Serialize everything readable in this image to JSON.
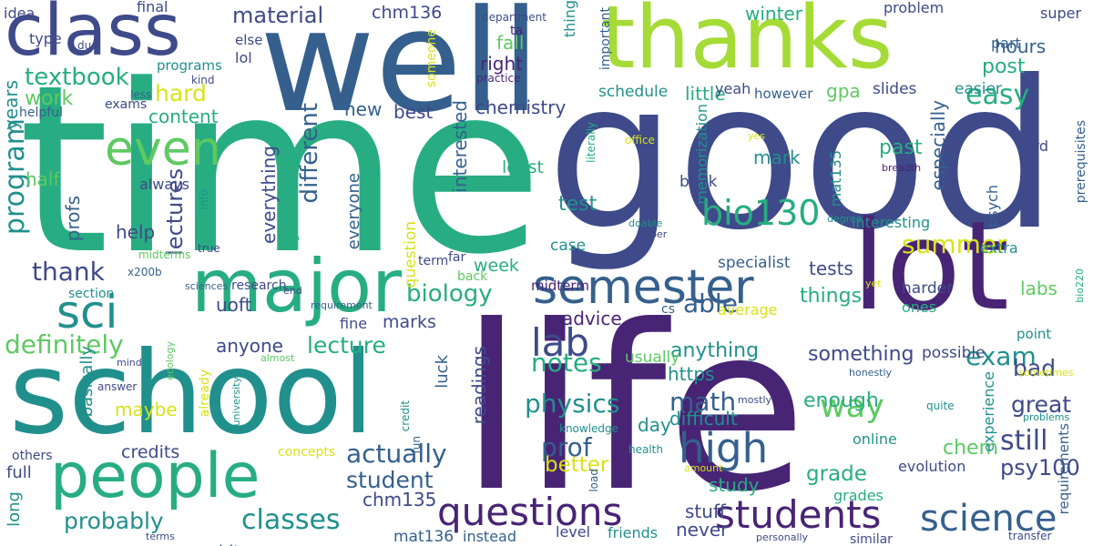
{
  "palette": {
    "dark_purple": "#482475",
    "indigo": "#3e4a89",
    "slate_blue": "#35608d",
    "teal": "#21908d",
    "sea_green": "#27ad81",
    "green": "#5ec962",
    "lime": "#a5db36",
    "yellow": "#d8e219",
    "purple": "#440154"
  },
  "words": [
    {
      "text": "time",
      "color": "#27ad81"
    },
    {
      "text": "good",
      "color": "#3e4a89"
    },
    {
      "text": "life",
      "color": "#482475"
    },
    {
      "text": "well",
      "color": "#35608d"
    },
    {
      "text": "thanks",
      "color": "#a5db36"
    },
    {
      "text": "school",
      "color": "#21908d"
    },
    {
      "text": "lot",
      "color": "#482475"
    },
    {
      "text": "class",
      "color": "#3e4a89"
    },
    {
      "text": "major",
      "color": "#27ad81"
    },
    {
      "text": "people",
      "color": "#27ad81"
    },
    {
      "text": "semester",
      "color": "#35608d"
    },
    {
      "text": "even",
      "color": "#5ec962"
    },
    {
      "text": "questions",
      "color": "#482475"
    },
    {
      "text": "students",
      "color": "#482475"
    },
    {
      "text": "sci",
      "color": "#21908d"
    },
    {
      "text": "high",
      "color": "#35608d"
    },
    {
      "text": "science",
      "color": "#35608d"
    },
    {
      "text": "bio130",
      "color": "#27ad81"
    },
    {
      "text": "program",
      "color": "#21908d"
    },
    {
      "text": "lab",
      "color": "#3e4a89"
    },
    {
      "text": "lectures",
      "color": "#3e4a89"
    },
    {
      "text": "classes",
      "color": "#21908d"
    },
    {
      "text": "easy",
      "color": "#27ad81"
    },
    {
      "text": "textbook",
      "color": "#27ad81"
    },
    {
      "text": "material",
      "color": "#3e4a89"
    },
    {
      "text": "hard",
      "color": "#d8e219"
    },
    {
      "text": "thank",
      "color": "#3e4a89"
    },
    {
      "text": "definitely",
      "color": "#5ec962"
    },
    {
      "text": "biology",
      "color": "#27ad81"
    },
    {
      "text": "lecture",
      "color": "#27ad81"
    },
    {
      "text": "physics",
      "color": "#21908d"
    },
    {
      "text": "notes",
      "color": "#27ad81"
    },
    {
      "text": "actually",
      "color": "#35608d"
    },
    {
      "text": "math",
      "color": "#35608d"
    },
    {
      "text": "student",
      "color": "#35608d"
    },
    {
      "text": "probably",
      "color": "#21908d"
    },
    {
      "text": "way",
      "color": "#5ec962"
    },
    {
      "text": "prof",
      "color": "#35608d"
    },
    {
      "text": "exam",
      "color": "#21908d"
    },
    {
      "text": "still",
      "color": "#3e4a89"
    },
    {
      "text": "summer",
      "color": "#d8e219"
    },
    {
      "text": "different",
      "color": "#35608d"
    },
    {
      "text": "years",
      "color": "#21908d"
    },
    {
      "text": "chem",
      "color": "#5ec962"
    },
    {
      "text": "great",
      "color": "#3e4a89"
    },
    {
      "text": "bad",
      "color": "#3e4a89"
    },
    {
      "text": "better",
      "color": "#d8e219"
    },
    {
      "text": "able",
      "color": "#35608d"
    },
    {
      "text": "psy100",
      "color": "#3e4a89"
    },
    {
      "text": "chm135",
      "color": "#3e4a89"
    },
    {
      "text": "grade",
      "color": "#27ad81"
    },
    {
      "text": "something",
      "color": "#3e4a89"
    },
    {
      "text": "past",
      "color": "#27ad81"
    },
    {
      "text": "especially",
      "color": "#35608d"
    },
    {
      "text": "difficult",
      "color": "#21908d"
    },
    {
      "text": "enough",
      "color": "#27ad81"
    },
    {
      "text": "readings",
      "color": "#3e4a89"
    },
    {
      "text": "interested",
      "color": "#35608d"
    },
    {
      "text": "anything",
      "color": "#21908d"
    },
    {
      "text": "https",
      "color": "#21908d"
    },
    {
      "text": "hours",
      "color": "#35608d"
    },
    {
      "text": "post",
      "color": "#27ad81"
    },
    {
      "text": "everything",
      "color": "#3e4a89"
    },
    {
      "text": "content",
      "color": "#27ad81"
    },
    {
      "text": "work",
      "color": "#5ec962"
    },
    {
      "text": "chm136",
      "color": "#3e4a89"
    },
    {
      "text": "fall",
      "color": "#5ec962"
    },
    {
      "text": "right",
      "color": "#482475"
    },
    {
      "text": "winter",
      "color": "#27ad81"
    },
    {
      "text": "best",
      "color": "#3e4a89"
    },
    {
      "text": "chemistry",
      "color": "#3e4a89"
    },
    {
      "text": "little",
      "color": "#27ad81"
    },
    {
      "text": "schedule",
      "color": "#21908d"
    },
    {
      "text": "gpa",
      "color": "#5ec962"
    },
    {
      "text": "easier",
      "color": "#21908d"
    },
    {
      "text": "slides",
      "color": "#3e4a89"
    },
    {
      "text": "mark",
      "color": "#21908d"
    },
    {
      "text": "mat135",
      "color": "#21908d"
    },
    {
      "text": "test",
      "color": "#21908d"
    },
    {
      "text": "tests",
      "color": "#3e4a89"
    },
    {
      "text": "things",
      "color": "#27ad81"
    },
    {
      "text": "labs",
      "color": "#5ec962"
    },
    {
      "text": "new",
      "color": "#35608d"
    },
    {
      "text": "help",
      "color": "#3e4a89"
    },
    {
      "text": "everyone",
      "color": "#35608d"
    },
    {
      "text": "uoft",
      "color": "#3e4a89"
    },
    {
      "text": "advice",
      "color": "#482475"
    },
    {
      "text": "marks",
      "color": "#3e4a89"
    },
    {
      "text": "anyone",
      "color": "#3e4a89"
    },
    {
      "text": "profs",
      "color": "#35608d"
    },
    {
      "text": "half",
      "color": "#5ec962"
    },
    {
      "text": "maybe",
      "color": "#d8e219"
    },
    {
      "text": "credits",
      "color": "#3e4a89"
    },
    {
      "text": "basically",
      "color": "#21908d"
    },
    {
      "text": "full",
      "color": "#3e4a89"
    },
    {
      "text": "long",
      "color": "#21908d"
    },
    {
      "text": "bit",
      "color": "#3e4a89"
    },
    {
      "text": "mat136",
      "color": "#35608d"
    },
    {
      "text": "instead",
      "color": "#35608d"
    },
    {
      "text": "friends",
      "color": "#21908d"
    },
    {
      "text": "level",
      "color": "#3e4a89"
    },
    {
      "text": "stuff",
      "color": "#3e4a89"
    },
    {
      "text": "never",
      "color": "#3e4a89"
    },
    {
      "text": "study",
      "color": "#27ad81"
    },
    {
      "text": "day",
      "color": "#21908d"
    },
    {
      "text": "luck",
      "color": "#35608d"
    },
    {
      "text": "week",
      "color": "#27ad81"
    },
    {
      "text": "midterm",
      "color": "#482475"
    },
    {
      "text": "question",
      "color": "#d8e219"
    },
    {
      "text": "book",
      "color": "#3e4a89"
    },
    {
      "text": "case",
      "color": "#21908d"
    },
    {
      "text": "least",
      "color": "#27ad81"
    },
    {
      "text": "specialist",
      "color": "#35608d"
    },
    {
      "text": "memorization",
      "color": "#21908d"
    },
    {
      "text": "harder",
      "color": "#3e4a89"
    },
    {
      "text": "possible",
      "color": "#3e4a89"
    },
    {
      "text": "usually",
      "color": "#5ec962"
    },
    {
      "text": "average",
      "color": "#d8e219"
    },
    {
      "text": "experience",
      "color": "#21908d"
    },
    {
      "text": "evolution",
      "color": "#3e4a89"
    },
    {
      "text": "grades",
      "color": "#27ad81"
    },
    {
      "text": "online",
      "color": "#21908d"
    },
    {
      "text": "requirements",
      "color": "#35608d"
    },
    {
      "text": "extra",
      "color": "#21908d"
    },
    {
      "text": "ones",
      "color": "#27ad81"
    },
    {
      "text": "interesting",
      "color": "#21908d"
    },
    {
      "text": "psych",
      "color": "#35608d"
    },
    {
      "text": "bird",
      "color": "#3e4a89"
    },
    {
      "text": "prerequisites",
      "color": "#35608d"
    },
    {
      "text": "super",
      "color": "#3e4a89"
    },
    {
      "text": "part",
      "color": "#35608d"
    },
    {
      "text": "problem",
      "color": "#3e4a89"
    },
    {
      "text": "yeah",
      "color": "#3e4a89"
    },
    {
      "text": "however",
      "color": "#35608d"
    },
    {
      "text": "idea",
      "color": "#3e4a89"
    },
    {
      "text": "final",
      "color": "#3e4a89"
    },
    {
      "text": "type",
      "color": "#3e4a89"
    },
    {
      "text": "else",
      "color": "#3e4a89"
    },
    {
      "text": "lol",
      "color": "#3e4a89"
    },
    {
      "text": "programs",
      "color": "#21908d"
    },
    {
      "text": "exams",
      "color": "#3e4a89"
    },
    {
      "text": "helpful",
      "color": "#35608d"
    },
    {
      "text": "less",
      "color": "#35608d"
    },
    {
      "text": "kind",
      "color": "#3e4a89"
    },
    {
      "text": "due",
      "color": "#3e4a89"
    },
    {
      "text": "department",
      "color": "#3e4a89"
    },
    {
      "text": "ta",
      "color": "#482475"
    },
    {
      "text": "thing",
      "color": "#21908d"
    },
    {
      "text": "important",
      "color": "#35608d"
    },
    {
      "text": "someone",
      "color": "#d8e219"
    },
    {
      "text": "practice",
      "color": "#482475"
    },
    {
      "text": "office",
      "color": "#d8e219"
    },
    {
      "text": "yes",
      "color": "#d8e219"
    },
    {
      "text": "literally",
      "color": "#27ad81"
    },
    {
      "text": "breadth",
      "color": "#482475"
    },
    {
      "text": "doable",
      "color": "#21908d"
    },
    {
      "text": "upper",
      "color": "#3e4a89"
    },
    {
      "text": "degree",
      "color": "#21908d"
    },
    {
      "text": "far",
      "color": "#3e4a89"
    },
    {
      "text": "back",
      "color": "#5ec962"
    },
    {
      "text": "term",
      "color": "#3e4a89"
    },
    {
      "text": "info",
      "color": "#21908d"
    },
    {
      "text": "general",
      "color": "#27ad81"
    },
    {
      "text": "always",
      "color": "#3e4a89"
    },
    {
      "text": "true",
      "color": "#3e4a89"
    },
    {
      "text": "midterms",
      "color": "#5ec962"
    },
    {
      "text": "x200b",
      "color": "#35608d"
    },
    {
      "text": "sciences",
      "color": "#35608d"
    },
    {
      "text": "research",
      "color": "#3e4a89"
    },
    {
      "text": "section",
      "color": "#21908d"
    },
    {
      "text": "end",
      "color": "#3e4a89"
    },
    {
      "text": "fine",
      "color": "#3e4a89"
    },
    {
      "text": "requirement",
      "color": "#35608d"
    },
    {
      "text": "almost",
      "color": "#5ec962"
    },
    {
      "text": "university",
      "color": "#21908d"
    },
    {
      "text": "ecology",
      "color": "#5ec962"
    },
    {
      "text": "mind",
      "color": "#3e4a89"
    },
    {
      "text": "answer",
      "color": "#3e4a89"
    },
    {
      "text": "already",
      "color": "#d8e219"
    },
    {
      "text": "concepts",
      "color": "#d8e219"
    },
    {
      "text": "others",
      "color": "#3e4a89"
    },
    {
      "text": "terms",
      "color": "#3e4a89"
    },
    {
      "text": "credit",
      "color": "#21908d"
    },
    {
      "text": "fun",
      "color": "#35608d"
    },
    {
      "text": "knowledge",
      "color": "#21908d"
    },
    {
      "text": "health",
      "color": "#21908d"
    },
    {
      "text": "load",
      "color": "#35608d"
    },
    {
      "text": "amount",
      "color": "#d8e219"
    },
    {
      "text": "cs",
      "color": "#35608d"
    },
    {
      "text": "mostly",
      "color": "#3e4a89"
    },
    {
      "text": "quite",
      "color": "#21908d"
    },
    {
      "text": "honestly",
      "color": "#35608d"
    },
    {
      "text": "sometimes",
      "color": "#d8e219"
    },
    {
      "text": "problems",
      "color": "#21908d"
    },
    {
      "text": "point",
      "color": "#21908d"
    },
    {
      "text": "transfer",
      "color": "#3e4a89"
    },
    {
      "text": "similar",
      "color": "#3e4a89"
    },
    {
      "text": "personally",
      "color": "#3e4a89"
    },
    {
      "text": "yet",
      "color": "#d8e219"
    },
    {
      "text": "bio220",
      "color": "#27ad81"
    }
  ]
}
